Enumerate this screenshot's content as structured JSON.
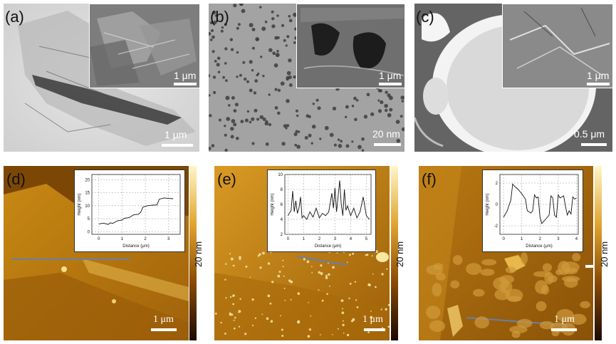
{
  "panels": {
    "a": {
      "label": "(a)",
      "scale": "1 μm",
      "inset_scale": "1 μm"
    },
    "b": {
      "label": "(b)",
      "scale": "20 nm",
      "inset_scale": "1 μm"
    },
    "c": {
      "label": "(c)",
      "scale": "0.5 μm",
      "inset_scale": "1 μm"
    },
    "d": {
      "label": "(d)",
      "scale": "1 μm",
      "colorbar": "20 nm"
    },
    "e": {
      "label": "(e)",
      "scale": "1 μm",
      "colorbar": "20 nm"
    },
    "f": {
      "label": "(f)",
      "scale": "1 μm",
      "colorbar": "20 nm"
    }
  },
  "profiles": {
    "d": {
      "xlabel": "Distance (μm)",
      "ylabel": "Height (nm)",
      "xticks": [
        "0",
        "1",
        "2",
        "3"
      ],
      "yticks": [
        "0",
        "5",
        "10",
        "15",
        "20"
      ],
      "xlim": [
        -0.3,
        3.5
      ],
      "ylim": [
        -1,
        22
      ],
      "points": [
        [
          0,
          3.0
        ],
        [
          0.2,
          3.3
        ],
        [
          0.4,
          2.8
        ],
        [
          0.5,
          3.4
        ],
        [
          0.6,
          3.2
        ],
        [
          0.8,
          4.2
        ],
        [
          1.0,
          4.5
        ],
        [
          1.1,
          5.2
        ],
        [
          1.3,
          5.4
        ],
        [
          1.5,
          6.5
        ],
        [
          1.7,
          6.7
        ],
        [
          1.8,
          7.5
        ],
        [
          1.9,
          9.5
        ],
        [
          2.1,
          10.0
        ],
        [
          2.3,
          10.2
        ],
        [
          2.5,
          10.3
        ],
        [
          2.6,
          12.5
        ],
        [
          2.8,
          13.0
        ],
        [
          3.0,
          12.8
        ],
        [
          3.2,
          12.7
        ]
      ]
    },
    "e": {
      "xlabel": "Distance (μm)",
      "ylabel": "Height (nm)",
      "xticks": [
        "0",
        "1",
        "2",
        "3",
        "4",
        "5"
      ],
      "yticks": [
        "2",
        "4",
        "6",
        "8",
        "10"
      ],
      "xlim": [
        -0.2,
        5.3
      ],
      "ylim": [
        2,
        10
      ],
      "points": [
        [
          0,
          4.5
        ],
        [
          0.2,
          5.2
        ],
        [
          0.3,
          7.8
        ],
        [
          0.4,
          5.0
        ],
        [
          0.5,
          6.5
        ],
        [
          0.6,
          4.8
        ],
        [
          0.7,
          5.5
        ],
        [
          0.8,
          7.0
        ],
        [
          0.9,
          4.2
        ],
        [
          1.0,
          4.5
        ],
        [
          1.2,
          4.0
        ],
        [
          1.4,
          5.0
        ],
        [
          1.6,
          4.3
        ],
        [
          1.8,
          5.5
        ],
        [
          2.0,
          4.2
        ],
        [
          2.2,
          4.8
        ],
        [
          2.4,
          4.5
        ],
        [
          2.6,
          5.0
        ],
        [
          2.8,
          7.5
        ],
        [
          2.9,
          5.5
        ],
        [
          3.0,
          8.2
        ],
        [
          3.1,
          5.0
        ],
        [
          3.3,
          9.2
        ],
        [
          3.4,
          6.0
        ],
        [
          3.5,
          4.5
        ],
        [
          3.6,
          8.0
        ],
        [
          3.7,
          5.2
        ],
        [
          3.8,
          5.8
        ],
        [
          4.0,
          4.5
        ],
        [
          4.2,
          5.5
        ],
        [
          4.4,
          4.2
        ],
        [
          4.6,
          5.0
        ],
        [
          4.8,
          7.0
        ],
        [
          5.0,
          4.5
        ],
        [
          5.2,
          4.0
        ]
      ]
    },
    "f": {
      "xlabel": "Distance (μm)",
      "ylabel": "Height (nm)",
      "xticks": [
        "0",
        "1",
        "2",
        "3",
        "4"
      ],
      "yticks": [
        "-2",
        "0",
        "2"
      ],
      "xlim": [
        -0.2,
        4.1
      ],
      "ylim": [
        -2.8,
        2.8
      ],
      "points": [
        [
          0,
          -1.2
        ],
        [
          0.2,
          -0.6
        ],
        [
          0.4,
          0.4
        ],
        [
          0.5,
          1.9
        ],
        [
          0.6,
          1.7
        ],
        [
          0.8,
          1.4
        ],
        [
          1.0,
          1.0
        ],
        [
          1.2,
          0.5
        ],
        [
          1.3,
          -0.6
        ],
        [
          1.5,
          -0.8
        ],
        [
          1.6,
          -0.6
        ],
        [
          1.7,
          0.9
        ],
        [
          1.8,
          0.6
        ],
        [
          1.9,
          0.7
        ],
        [
          2.0,
          -1.2
        ],
        [
          2.1,
          -1.8
        ],
        [
          2.3,
          -1.4
        ],
        [
          2.5,
          -1.0
        ],
        [
          2.6,
          0.8
        ],
        [
          2.7,
          0.6
        ],
        [
          2.8,
          -1.0
        ],
        [
          2.9,
          -1.2
        ],
        [
          3.0,
          0.9
        ],
        [
          3.1,
          0.6
        ],
        [
          3.3,
          0.8
        ],
        [
          3.4,
          -0.2
        ],
        [
          3.5,
          -1.0
        ],
        [
          3.6,
          -0.6
        ],
        [
          3.7,
          -0.9
        ],
        [
          3.8,
          0.7
        ],
        [
          3.9,
          0.5
        ],
        [
          4.0,
          0.6
        ]
      ]
    }
  }
}
